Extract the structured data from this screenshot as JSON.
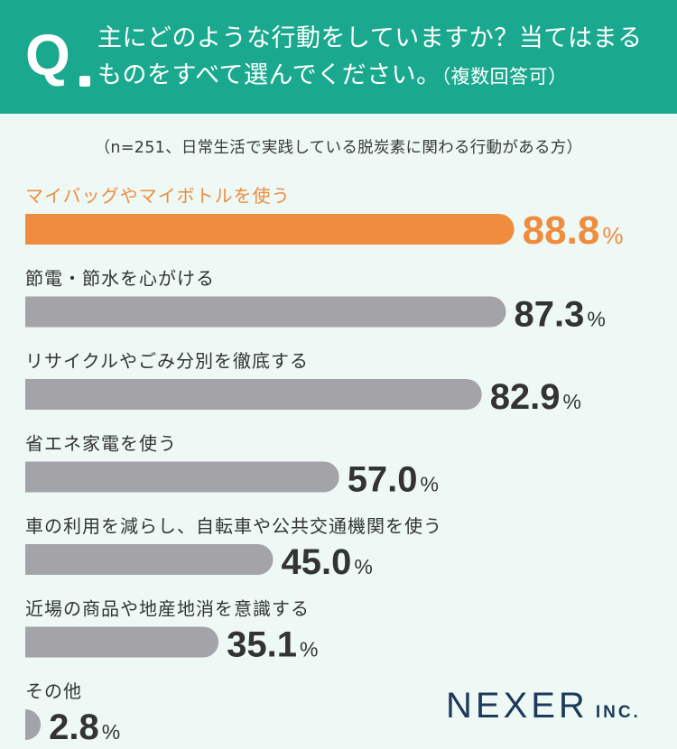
{
  "header": {
    "q_label": "Q",
    "question_line1": "主にどのような行動をしていますか？当てはまる",
    "question_line2": "ものをすべて選んでください。",
    "question_note": "（複数回答可）"
  },
  "sample_note": "（n=251、日常生活で実践している脱炭素に関わる行動がある方）",
  "colors": {
    "header_bg": "#1aa98e",
    "highlight": "#ef8c3e",
    "bar": "#a3a3a8",
    "background": "#eef9f6",
    "logo": "#1e3a5a"
  },
  "chart_data": {
    "type": "bar",
    "orientation": "horizontal",
    "unit": "%",
    "categories": [
      "マイバッグやマイボトルを使う",
      "節電・節水を心がける",
      "リサイクルやごみ分別を徹底する",
      "省エネ家電を使う",
      "車の利用を減らし、自転車や公共交通機関を使う",
      "近場の商品や地産地消を意識する",
      "その他"
    ],
    "values": [
      88.8,
      87.3,
      82.9,
      57.0,
      45.0,
      35.1,
      2.8
    ],
    "value_labels": [
      "88.8",
      "87.3",
      "82.9",
      "57.0",
      "45.0",
      "35.1",
      "2.8"
    ],
    "highlight_index": 0
  },
  "logo": {
    "name": "NEXER",
    "suffix": "INC."
  }
}
